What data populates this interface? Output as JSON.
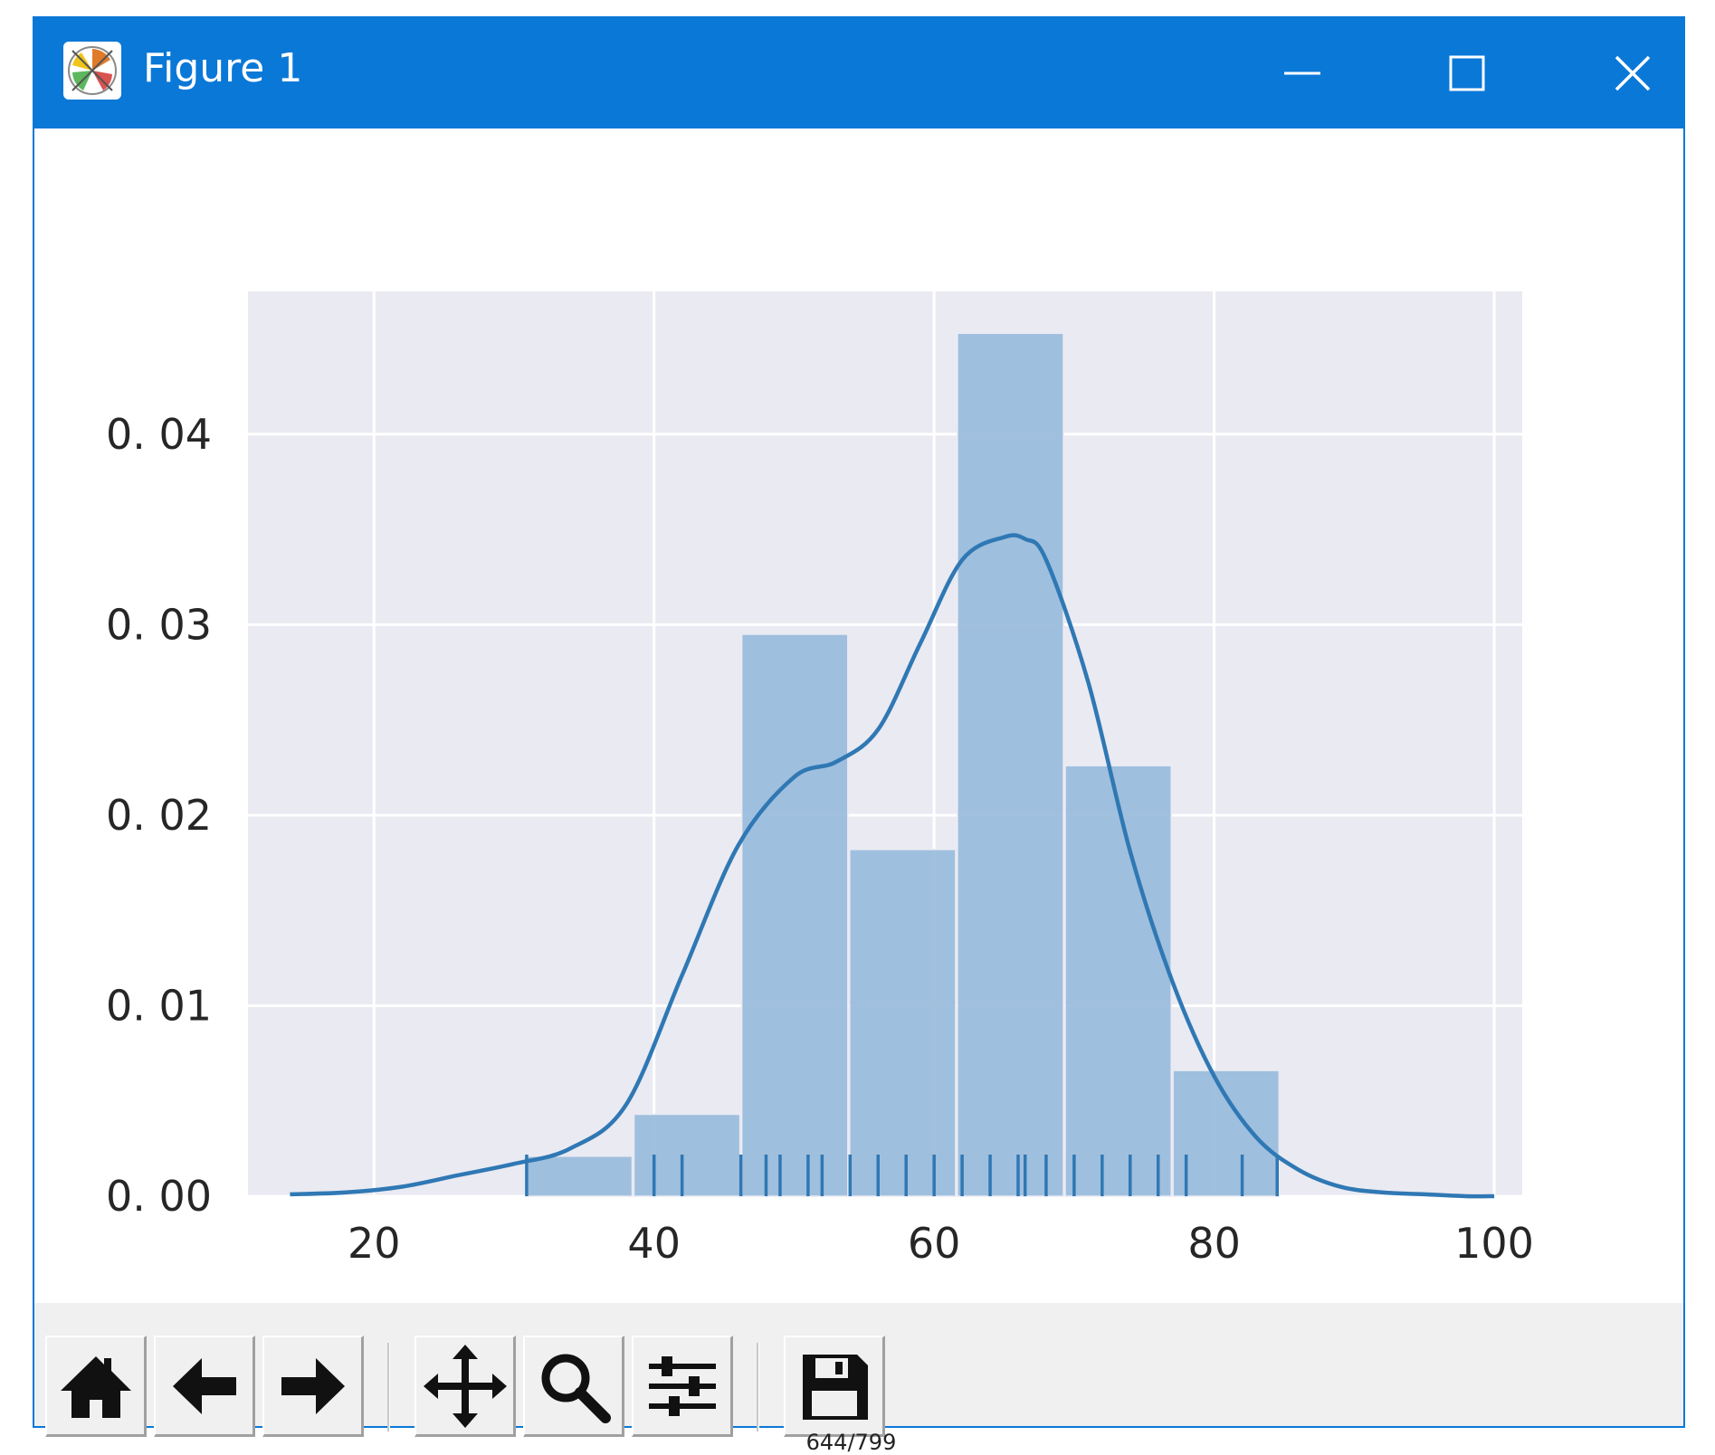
{
  "window": {
    "title": "Figure 1",
    "icon": "matplotlib-icon",
    "controls": [
      "minimize-icon",
      "maximize-icon",
      "close-icon"
    ],
    "title_bar_color": "#0a78d7"
  },
  "chart_data": {
    "type": "histogram",
    "title": "",
    "xlabel": "",
    "ylabel": "",
    "xlim": [
      11,
      102
    ],
    "ylim": [
      0,
      0.0475
    ],
    "xticks": [
      20,
      40,
      60,
      80,
      100
    ],
    "xtick_labels": [
      "20",
      "40",
      "60",
      "80",
      "100"
    ],
    "yticks": [
      0,
      0.01,
      0.02,
      0.03,
      0.04
    ],
    "ytick_labels": [
      "0. 00",
      "0. 01",
      "0. 02",
      "0. 03",
      "0. 04"
    ],
    "grid": true,
    "background": "#eaeaf2",
    "bar_color": "#9bbddc",
    "line_color": "#2f78b4",
    "bins": [
      {
        "x0": 30.8,
        "x1": 38.5,
        "density": 0.0021
      },
      {
        "x0": 38.5,
        "x1": 46.2,
        "density": 0.0043
      },
      {
        "x0": 46.2,
        "x1": 53.9,
        "density": 0.0295
      },
      {
        "x0": 53.9,
        "x1": 61.6,
        "density": 0.0182
      },
      {
        "x0": 61.6,
        "x1": 69.3,
        "density": 0.0453
      },
      {
        "x0": 69.3,
        "x1": 77.0,
        "density": 0.0226
      },
      {
        "x0": 77.0,
        "x1": 84.7,
        "density": 0.0066
      }
    ],
    "kde": {
      "x": [
        14,
        18,
        22,
        26,
        30,
        34,
        38,
        42,
        46,
        50,
        53,
        56,
        59,
        62,
        65,
        66.5,
        68,
        71,
        74,
        77,
        80,
        83,
        86,
        89,
        92,
        95,
        98,
        100
      ],
      "y": [
        0.0001,
        0.0002,
        0.0005,
        0.0011,
        0.0017,
        0.0025,
        0.0048,
        0.0116,
        0.0184,
        0.022,
        0.0228,
        0.0245,
        0.029,
        0.0334,
        0.0346,
        0.0345,
        0.0334,
        0.027,
        0.0181,
        0.0113,
        0.0063,
        0.0031,
        0.0014,
        0.0005,
        0.0002,
        0.0001,
        0.0,
        0.0
      ]
    },
    "rug": [
      30.9,
      40,
      42,
      46.2,
      48,
      49,
      51,
      52,
      54,
      56,
      58,
      60,
      62,
      64,
      66,
      66.5,
      68,
      70,
      72,
      74,
      76,
      78,
      82,
      84.5
    ]
  },
  "toolbar": {
    "buttons": [
      {
        "name": "home-button",
        "icon": "home-icon"
      },
      {
        "name": "back-button",
        "icon": "back-arrow-icon"
      },
      {
        "name": "forward-button",
        "icon": "forward-arrow-icon"
      },
      {
        "name": "pan-button",
        "icon": "move-icon"
      },
      {
        "name": "zoom-button",
        "icon": "zoom-icon"
      },
      {
        "name": "subplots-button",
        "icon": "sliders-icon"
      },
      {
        "name": "save-button",
        "icon": "save-icon"
      }
    ]
  },
  "page_counter": "644/799"
}
